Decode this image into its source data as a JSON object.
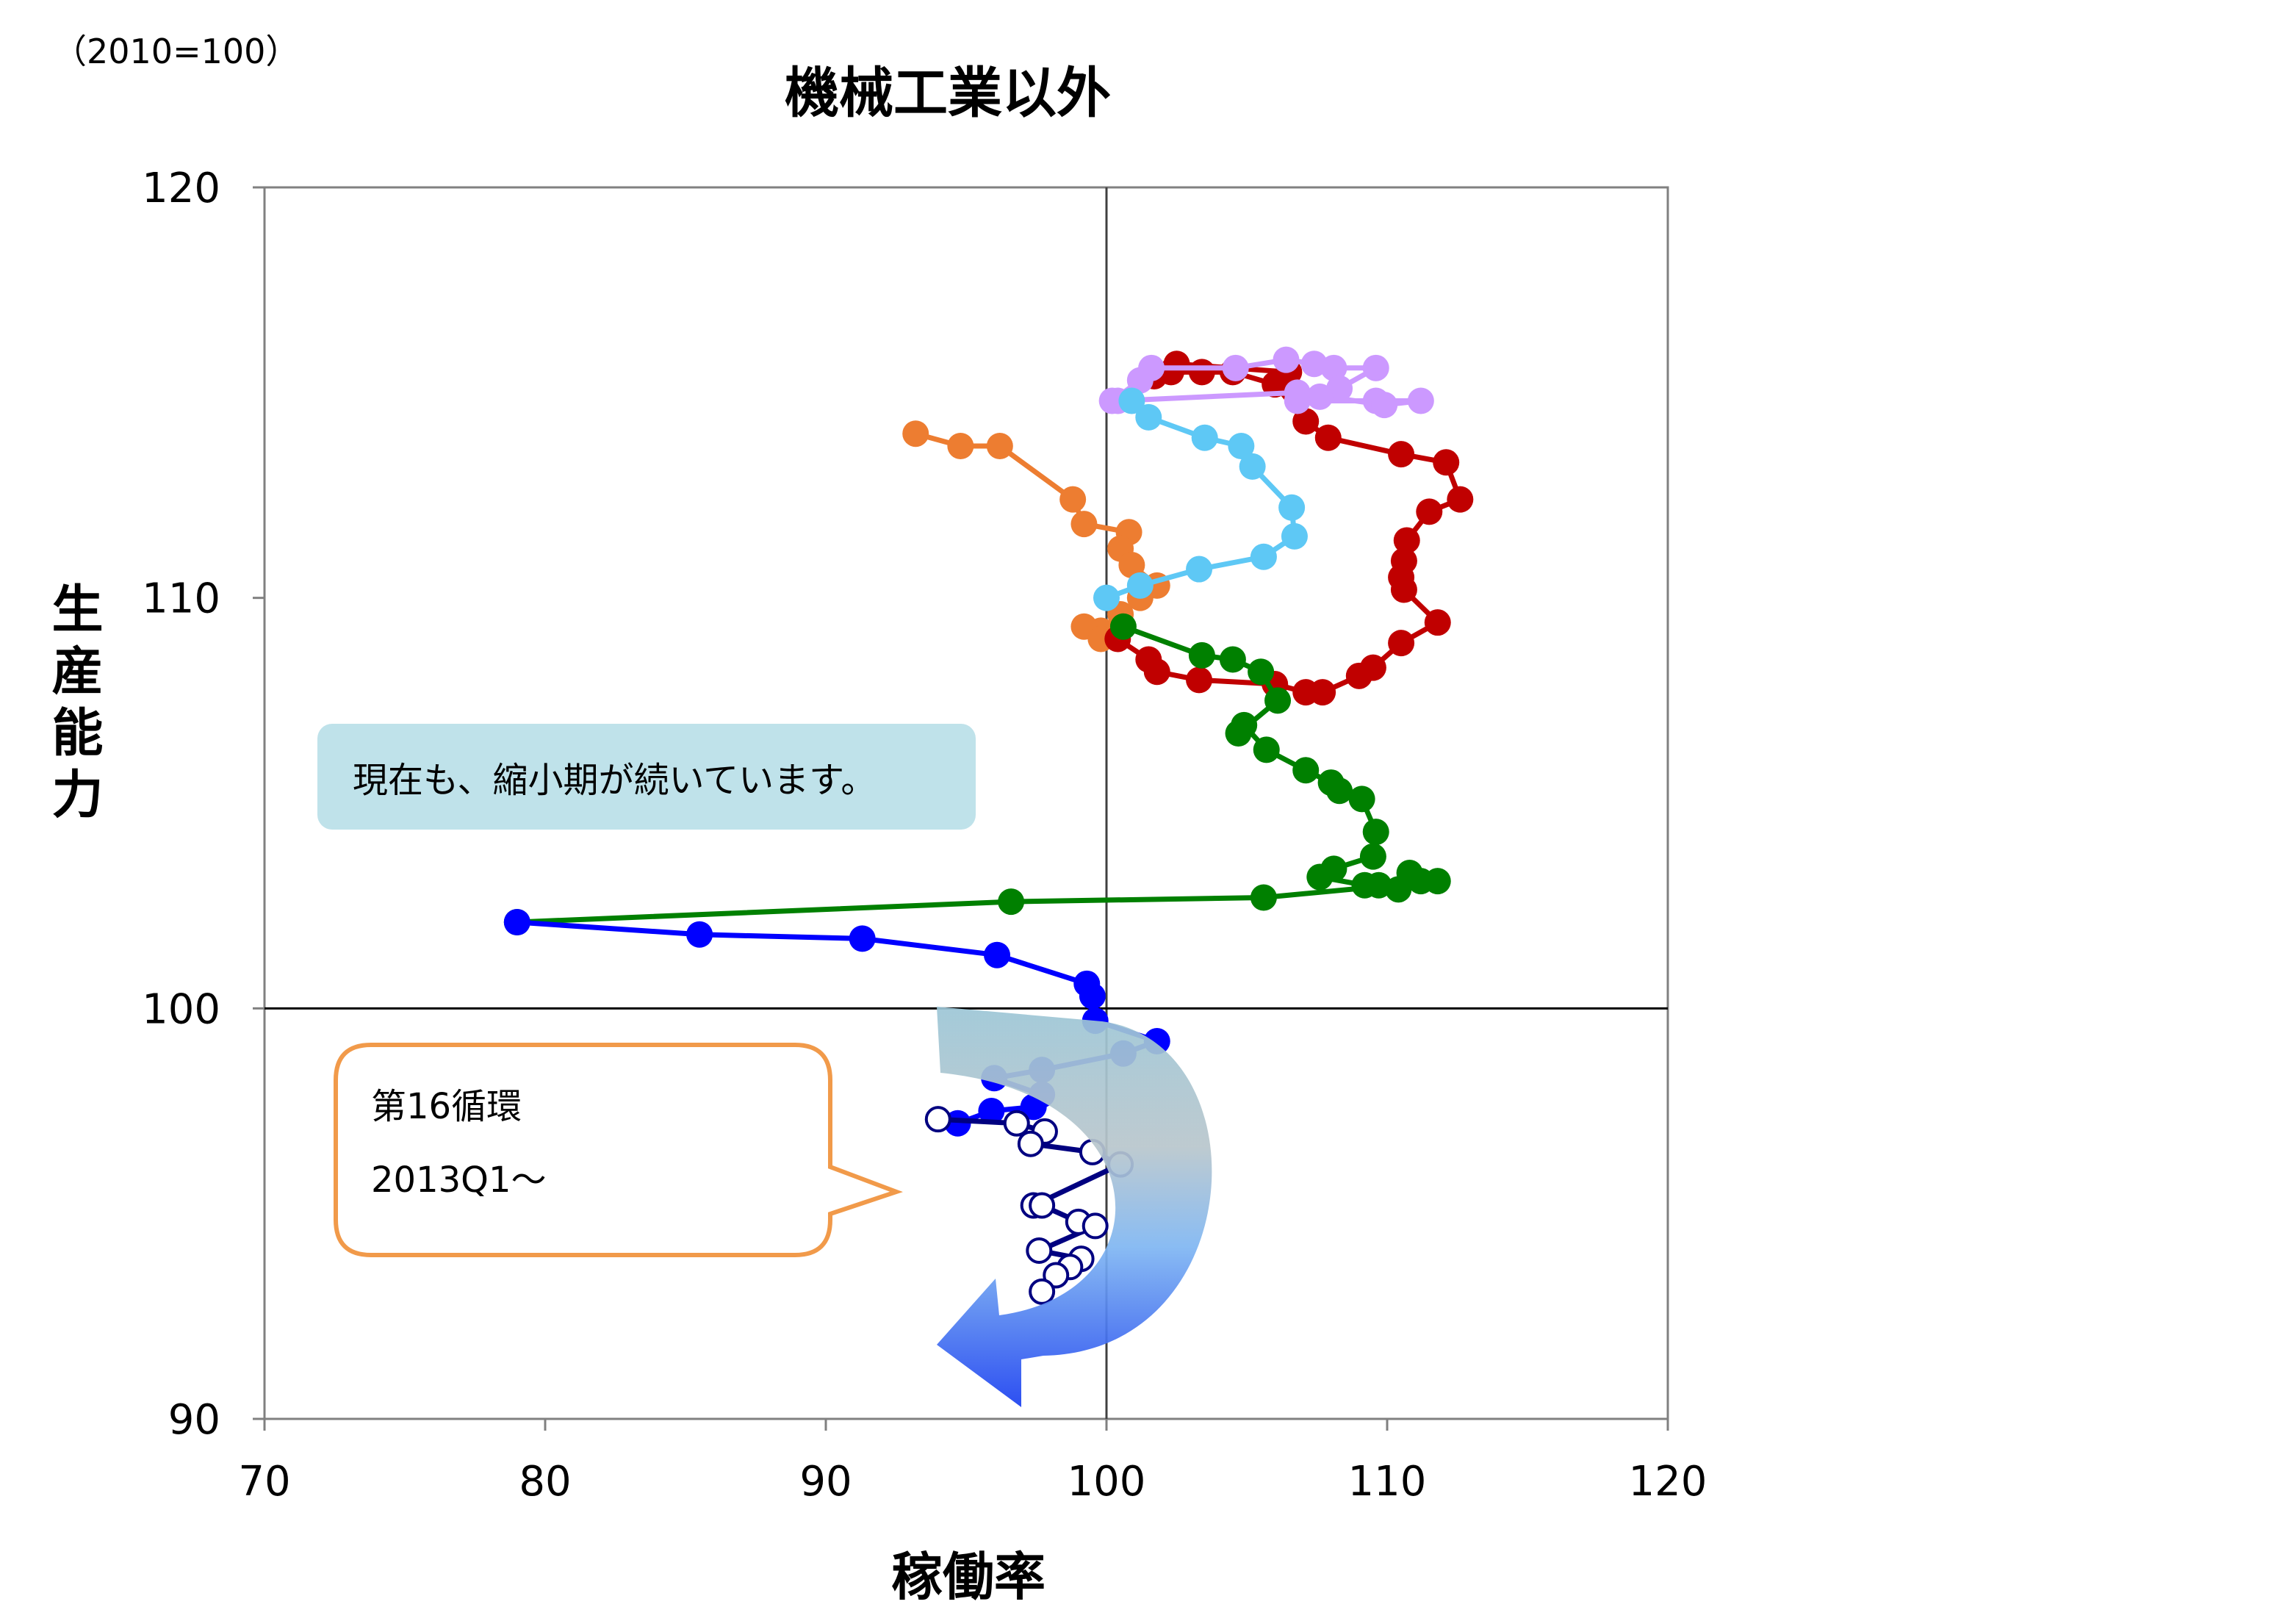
{
  "unit_note": "（2010=100）",
  "chart_data": {
    "type": "scatter",
    "title": "機械工業以外",
    "xlabel": "稼働率",
    "ylabel": "生産能力",
    "xlim": [
      70,
      120
    ],
    "ylim": [
      90,
      120
    ],
    "xticks": [
      "70",
      "80",
      "90",
      "100",
      "110",
      "120"
    ],
    "yticks": [
      "90",
      "100",
      "110",
      "120"
    ],
    "reference_lines": {
      "x": 100,
      "y": 100
    },
    "grid": false,
    "legend": "none",
    "series": [
      {
        "color": "#ed7d31",
        "marker": "filled",
        "points": [
          [
            93.2,
            114.0
          ],
          [
            94.8,
            113.7
          ],
          [
            96.2,
            113.7
          ],
          [
            98.8,
            112.4
          ],
          [
            99.2,
            111.8
          ],
          [
            100.8,
            111.6
          ],
          [
            100.5,
            111.2
          ],
          [
            100.9,
            110.8
          ],
          [
            101.8,
            110.3
          ],
          [
            101.2,
            110.0
          ],
          [
            100.5,
            109.6
          ],
          [
            99.8,
            109.2
          ],
          [
            99.2,
            109.3
          ],
          [
            99.8,
            109.0
          ]
        ]
      },
      {
        "color": "#c00000",
        "marker": "filled",
        "points": [
          [
            100.4,
            109.0
          ],
          [
            101.5,
            108.5
          ],
          [
            101.8,
            108.2
          ],
          [
            103.3,
            108.0
          ],
          [
            106.0,
            107.9
          ],
          [
            107.1,
            107.7
          ],
          [
            107.7,
            107.7
          ],
          [
            109.0,
            108.1
          ],
          [
            109.5,
            108.3
          ],
          [
            110.5,
            108.9
          ],
          [
            111.8,
            109.4
          ],
          [
            110.6,
            110.2
          ],
          [
            110.5,
            110.5
          ],
          [
            110.6,
            110.9
          ],
          [
            110.7,
            111.4
          ],
          [
            111.5,
            112.1
          ],
          [
            112.6,
            112.4
          ],
          [
            112.1,
            113.3
          ],
          [
            110.5,
            113.5
          ],
          [
            107.9,
            113.9
          ],
          [
            107.1,
            114.3
          ],
          [
            106.0,
            115.2
          ],
          [
            104.5,
            115.5
          ],
          [
            103.4,
            115.5
          ],
          [
            102.3,
            115.5
          ],
          [
            101.7,
            115.4
          ],
          [
            102.5,
            115.7
          ],
          [
            106.5,
            115.5
          ]
        ]
      },
      {
        "color": "#cc99ff",
        "marker": "filled",
        "points": [
          [
            100.2,
            114.8
          ],
          [
            101.2,
            115.3
          ],
          [
            101.6,
            115.6
          ],
          [
            104.6,
            115.6
          ],
          [
            106.4,
            115.8
          ],
          [
            107.4,
            115.7
          ],
          [
            108.1,
            115.6
          ],
          [
            109.6,
            115.6
          ],
          [
            108.3,
            115.1
          ],
          [
            107.6,
            114.9
          ],
          [
            106.8,
            114.8
          ],
          [
            109.6,
            114.8
          ],
          [
            111.2,
            114.8
          ],
          [
            109.9,
            114.7
          ],
          [
            106.8,
            115.0
          ],
          [
            100.4,
            114.8
          ]
        ]
      },
      {
        "color": "#5ec8f5",
        "marker": "filled",
        "points": [
          [
            100.9,
            114.8
          ],
          [
            101.5,
            114.4
          ],
          [
            103.5,
            113.9
          ],
          [
            104.8,
            113.7
          ],
          [
            105.2,
            113.2
          ],
          [
            106.6,
            112.2
          ],
          [
            106.7,
            111.5
          ],
          [
            105.6,
            111.0
          ],
          [
            103.3,
            110.7
          ],
          [
            101.2,
            110.3
          ],
          [
            100.0,
            110.0
          ]
        ]
      },
      {
        "color": "#008000",
        "marker": "filled",
        "points": [
          [
            100.6,
            109.3
          ],
          [
            103.4,
            108.6
          ],
          [
            104.5,
            108.5
          ],
          [
            105.5,
            108.2
          ],
          [
            106.1,
            107.5
          ],
          [
            104.7,
            106.7
          ],
          [
            104.9,
            106.9
          ],
          [
            105.7,
            106.3
          ],
          [
            107.1,
            105.8
          ],
          [
            108.0,
            105.5
          ],
          [
            108.3,
            105.3
          ],
          [
            109.1,
            105.1
          ],
          [
            109.6,
            104.3
          ],
          [
            109.5,
            103.7
          ],
          [
            108.1,
            103.4
          ],
          [
            107.6,
            103.2
          ],
          [
            109.2,
            103.0
          ],
          [
            109.7,
            103.0
          ],
          [
            110.4,
            102.9
          ],
          [
            110.8,
            103.3
          ],
          [
            111.2,
            103.1
          ],
          [
            111.8,
            103.1
          ],
          [
            105.6,
            102.7
          ],
          [
            96.6,
            102.6
          ],
          [
            79.0,
            102.1
          ]
        ]
      },
      {
        "color": "#0000ff",
        "marker": "filled",
        "points": [
          [
            79.0,
            102.1
          ],
          [
            85.5,
            101.8
          ],
          [
            91.3,
            101.7
          ],
          [
            96.1,
            101.3
          ],
          [
            99.3,
            100.6
          ],
          [
            99.5,
            100.3
          ],
          [
            99.6,
            99.7
          ],
          [
            101.8,
            99.2
          ],
          [
            100.6,
            98.9
          ],
          [
            97.7,
            98.5
          ],
          [
            96.0,
            98.3
          ],
          [
            97.7,
            97.9
          ],
          [
            97.4,
            97.6
          ],
          [
            95.9,
            97.5
          ],
          [
            94.7,
            97.2
          ]
        ]
      },
      {
        "color": "#000080",
        "marker": "hollow",
        "points": [
          [
            94.0,
            97.3
          ],
          [
            96.8,
            97.2
          ],
          [
            97.8,
            97.0
          ],
          [
            97.3,
            96.7
          ],
          [
            99.5,
            96.5
          ],
          [
            100.5,
            96.2
          ],
          [
            97.4,
            95.2
          ],
          [
            97.7,
            95.2
          ],
          [
            99.0,
            94.8
          ],
          [
            99.6,
            94.7
          ],
          [
            97.6,
            94.1
          ],
          [
            99.1,
            93.9
          ],
          [
            98.7,
            93.7
          ],
          [
            98.2,
            93.5
          ],
          [
            97.7,
            93.1
          ]
        ]
      }
    ]
  },
  "annotations": {
    "current_note": "現在も、縮小期が続いています。",
    "cycle_note_line1": "第16循環",
    "cycle_note_line2": "2013Q1～"
  }
}
